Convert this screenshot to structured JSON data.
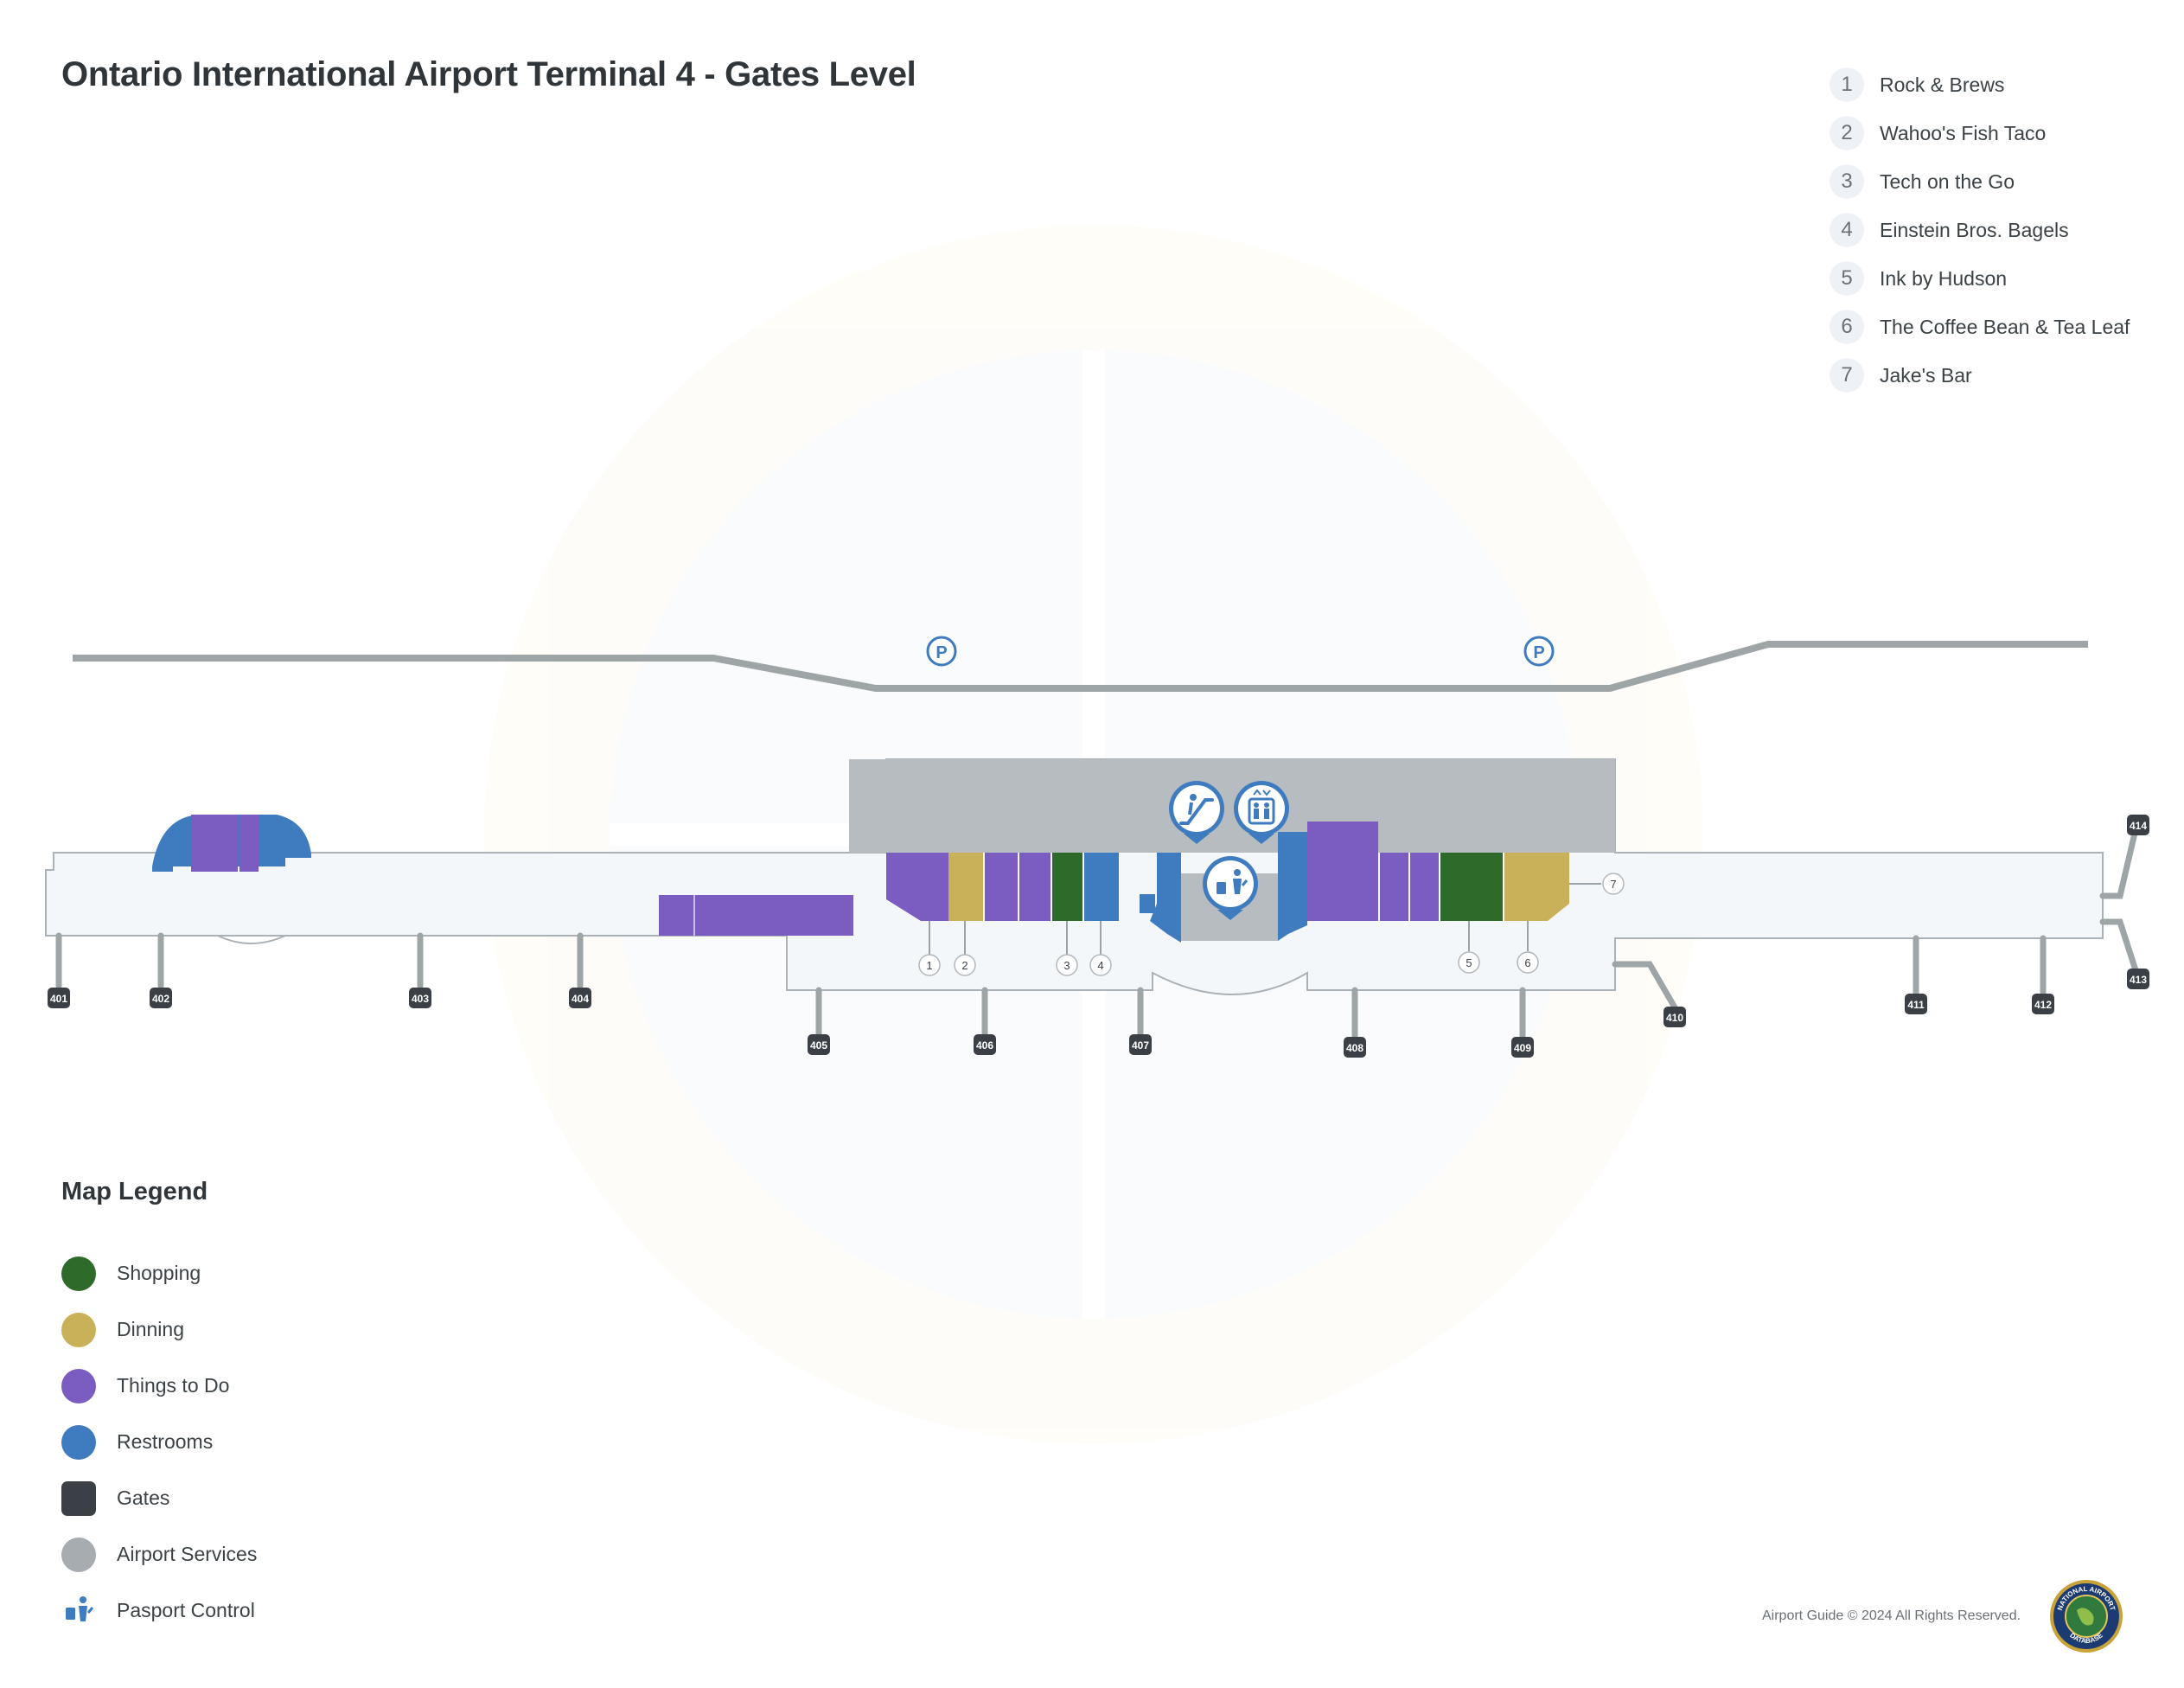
{
  "title": "Ontario International Airport Terminal 4 - Gates Level",
  "pois": [
    {
      "num": "1",
      "name": "Rock & Brews"
    },
    {
      "num": "2",
      "name": "Wahoo's Fish Taco"
    },
    {
      "num": "3",
      "name": "Tech on the Go"
    },
    {
      "num": "4",
      "name": "Einstein Bros. Bagels"
    },
    {
      "num": "5",
      "name": "Ink by Hudson"
    },
    {
      "num": "6",
      "name": "The Coffee Bean & Tea Leaf"
    },
    {
      "num": "7",
      "name": "Jake's Bar"
    }
  ],
  "gates": [
    "401",
    "402",
    "403",
    "404",
    "405",
    "406",
    "407",
    "408",
    "409",
    "410",
    "411",
    "412",
    "413",
    "414"
  ],
  "map_markers": [
    "1",
    "2",
    "3",
    "4",
    "5",
    "6",
    "7"
  ],
  "parking_icons": [
    "parking-icon",
    "parking-icon"
  ],
  "map_icons": [
    "escalator-icon",
    "elevator-icon",
    "passport-control-icon"
  ],
  "legend": {
    "title": "Map Legend",
    "items": [
      {
        "label": "Shopping",
        "color": "#2e6b2a",
        "shape": "circle"
      },
      {
        "label": "Dinning",
        "color": "#c9b15a",
        "shape": "circle"
      },
      {
        "label": "Things to Do",
        "color": "#7b5cc0",
        "shape": "circle"
      },
      {
        "label": "Restrooms",
        "color": "#3f7cbf",
        "shape": "circle"
      },
      {
        "label": "Gates",
        "color": "#3a4045",
        "shape": "square"
      },
      {
        "label": "Airport Services",
        "color": "#a7acb0",
        "shape": "circle"
      },
      {
        "label": "Pasport Control",
        "color": "#3f7cbf",
        "shape": "icon"
      }
    ]
  },
  "footer": "Airport Guide © 2024 All Rights Reserved.",
  "badge_text": "NATIONAL AIRPORT DATABASE"
}
